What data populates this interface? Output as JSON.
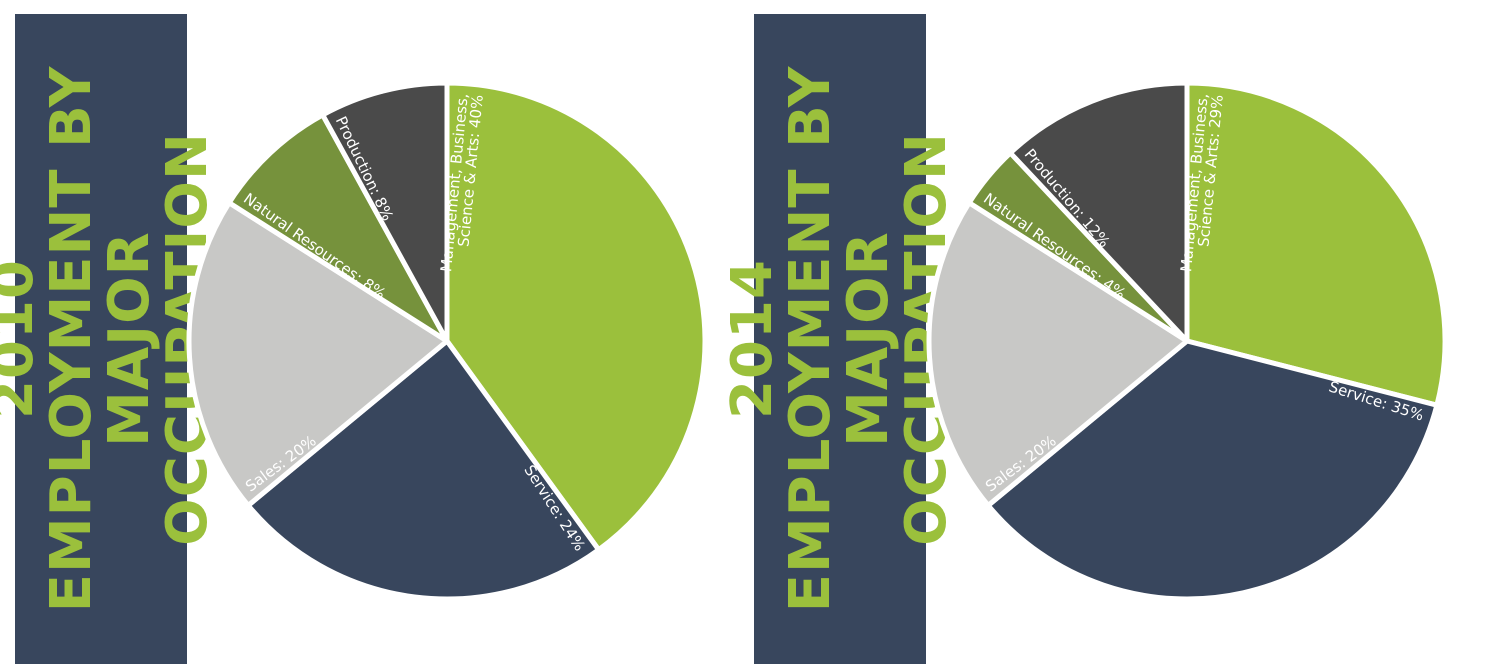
{
  "chart_data": [
    {
      "type": "pie",
      "title": "2010 EMPLOYMENT BY MAJOR OCCUPATION",
      "slices": [
        {
          "name": "Management, Business, Science & Arts",
          "value": 40,
          "label_lines": [
            "Management, Business,",
            "Science & Arts: 40%"
          ],
          "color": "#9bc03c"
        },
        {
          "name": "Service",
          "value": 24,
          "label_lines": [
            "Service: 24%"
          ],
          "color": "#38465d"
        },
        {
          "name": "Sales",
          "value": 20,
          "label_lines": [
            "Sales: 20%"
          ],
          "color": "#c8c8c6"
        },
        {
          "name": "Natural Resources",
          "value": 8,
          "label_lines": [
            "Natural Resources: 8%"
          ],
          "color": "#76923c"
        },
        {
          "name": "Production",
          "value": 8,
          "label_lines": [
            "Production: 8%"
          ],
          "color": "#4a4a4a"
        }
      ]
    },
    {
      "type": "pie",
      "title": "2014 EMPLOYMENT BY MAJOR OCCUPATION",
      "slices": [
        {
          "name": "Management, Business, Science & Arts",
          "value": 29,
          "label_lines": [
            "Management, Business,",
            "Science & Arts: 29%"
          ],
          "color": "#9bc03c"
        },
        {
          "name": "Service",
          "value": 35,
          "label_lines": [
            "Service: 35%"
          ],
          "color": "#38465d"
        },
        {
          "name": "Sales",
          "value": 20,
          "label_lines": [
            "Sales: 20%"
          ],
          "color": "#c8c8c6"
        },
        {
          "name": "Natural Resources",
          "value": 4,
          "label_lines": [
            "Natural Resources: 4%"
          ],
          "color": "#76923c"
        },
        {
          "name": "Production",
          "value": 12,
          "label_lines": [
            "Production: 12%"
          ],
          "color": "#4a4a4a"
        }
      ]
    }
  ]
}
